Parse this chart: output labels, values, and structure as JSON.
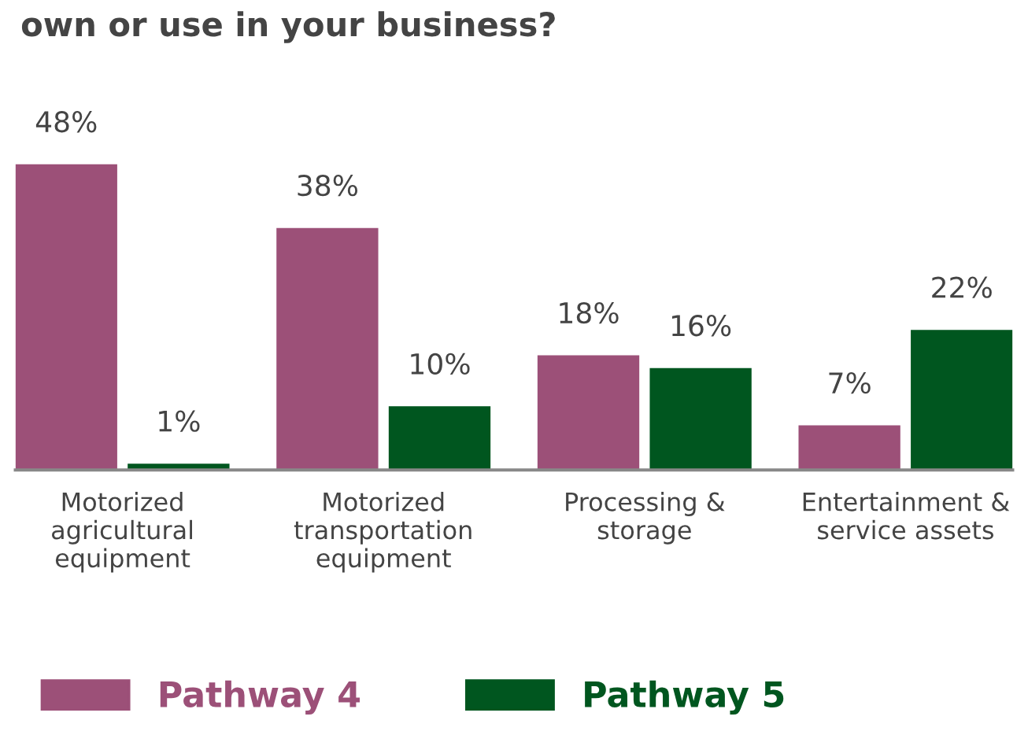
{
  "chart_data": {
    "type": "bar",
    "title": "own or use in your business?",
    "categories": [
      "Motorized\nagricultural\nequipment",
      "Motorized\ntransportation\nequipment",
      "Processing &\nstorage",
      "Entertainment &\nservice assets"
    ],
    "series": [
      {
        "name": "Pathway 4",
        "color": "#9c5078",
        "values": [
          48,
          38,
          18,
          7
        ],
        "value_labels": [
          "48%",
          "38%",
          "18%",
          "7%"
        ]
      },
      {
        "name": "Pathway 5",
        "color": "#00561f",
        "values": [
          1,
          10,
          16,
          22
        ],
        "value_labels": [
          "1%",
          "10%",
          "16%",
          "22%"
        ]
      }
    ],
    "legend": "bottom left",
    "grid": false
  }
}
